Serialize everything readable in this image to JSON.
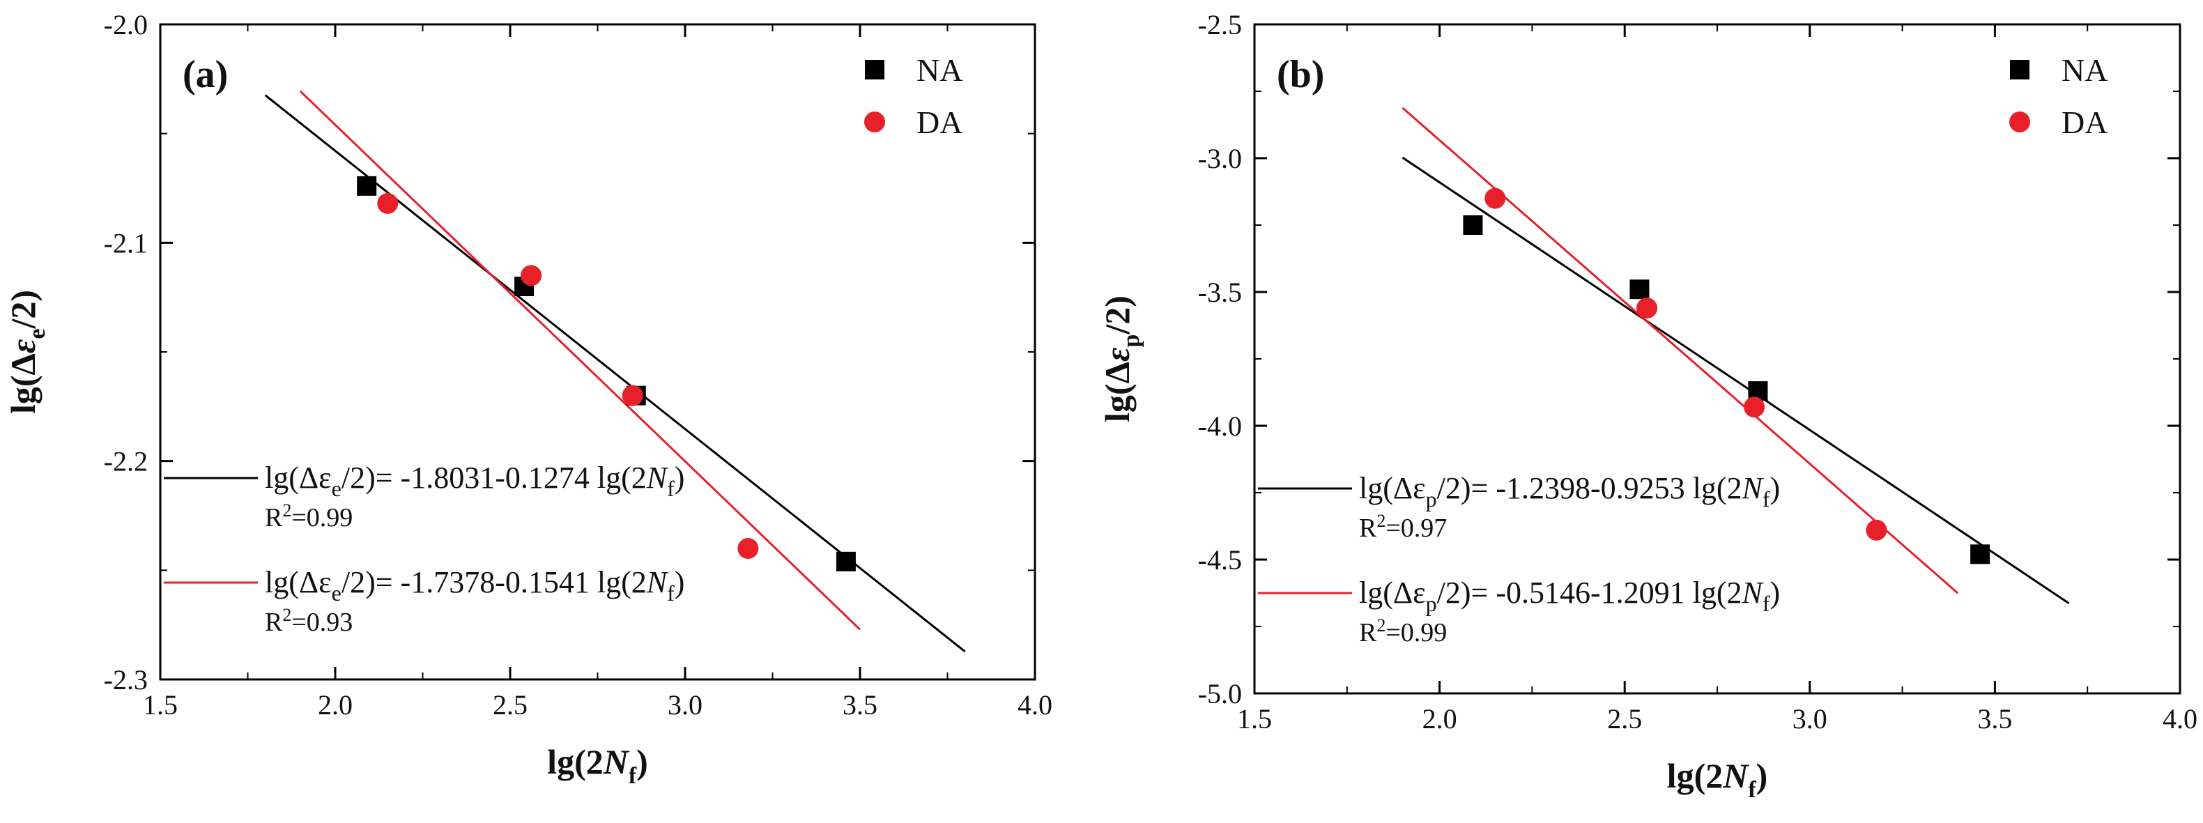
{
  "chart_data": [
    {
      "type": "scatter",
      "panel": "(a)",
      "xlabel": "lg(2Nf)",
      "ylabel": "lg(Δεe/2)",
      "xlim": [
        1.5,
        4.0
      ],
      "ylim": [
        -2.3,
        -2.0
      ],
      "xticks": [
        "1.5",
        "2.0",
        "2.5",
        "3.0",
        "3.5",
        "4.0"
      ],
      "yticks": [
        "-2.0",
        "-2.1",
        "-2.2",
        "-2.3"
      ],
      "series": [
        {
          "name": "NA",
          "marker": "square",
          "color": "#000000",
          "points": [
            [
              2.09,
              -2.074
            ],
            [
              2.54,
              -2.12
            ],
            [
              2.86,
              -2.17
            ],
            [
              3.46,
              -2.246
            ]
          ]
        },
        {
          "name": "DA",
          "marker": "circle",
          "color": "#e8202a",
          "points": [
            [
              2.15,
              -2.082
            ],
            [
              2.56,
              -2.115
            ],
            [
              2.85,
              -2.17
            ],
            [
              3.18,
              -2.24
            ]
          ]
        }
      ],
      "fits": [
        {
          "series": "NA",
          "color": "#000000",
          "x_range": [
            1.8,
            3.8
          ],
          "intercept": -1.8031,
          "slope": -0.1274,
          "eq_prefix": "lg(Δε",
          "eq_sub": "e",
          "eq_mid": "/2)= -1.8031-0.1274 lg(2",
          "eq_var": "N",
          "eq_sub2": "f",
          "eq_end": ")",
          "r2_label": "R",
          "r2_exp": "2",
          "r2_value": "=0.99"
        },
        {
          "series": "DA",
          "color": "#e8202a",
          "x_range": [
            1.9,
            3.5
          ],
          "intercept": -1.7378,
          "slope": -0.1541,
          "eq_prefix": "lg(Δε",
          "eq_sub": "e",
          "eq_mid": "/2)= -1.7378-0.1541 lg(2",
          "eq_var": "N",
          "eq_sub2": "f",
          "eq_end": ")",
          "r2_label": "R",
          "r2_exp": "2",
          "r2_value": "=0.93"
        }
      ],
      "legend_position": "top-right"
    },
    {
      "type": "scatter",
      "panel": "(b)",
      "xlabel": "lg(2Nf)",
      "ylabel": "lg(Δεp/2)",
      "xlim": [
        1.5,
        4.0
      ],
      "ylim": [
        -5.0,
        -2.5
      ],
      "xticks": [
        "1.5",
        "2.0",
        "2.5",
        "3.0",
        "3.5",
        "4.0"
      ],
      "yticks": [
        "-2.5",
        "-3.0",
        "-3.5",
        "-4.0",
        "-4.5",
        "-5.0"
      ],
      "series": [
        {
          "name": "NA",
          "marker": "square",
          "color": "#000000",
          "points": [
            [
              2.09,
              -3.25
            ],
            [
              2.54,
              -3.49
            ],
            [
              2.86,
              -3.87
            ],
            [
              3.46,
              -4.48
            ]
          ]
        },
        {
          "name": "DA",
          "marker": "circle",
          "color": "#e8202a",
          "points": [
            [
              2.15,
              -3.15
            ],
            [
              2.56,
              -3.56
            ],
            [
              2.85,
              -3.93
            ],
            [
              3.18,
              -4.39
            ]
          ]
        }
      ],
      "fits": [
        {
          "series": "NA",
          "color": "#000000",
          "x_range": [
            1.9,
            3.7
          ],
          "intercept": -1.2398,
          "slope": -0.9253,
          "eq_prefix": "lg(Δε",
          "eq_sub": "p",
          "eq_mid": "/2)= -1.2398-0.9253 lg(2",
          "eq_var": "N",
          "eq_sub2": "f",
          "eq_end": ")",
          "r2_label": "R",
          "r2_exp": "2",
          "r2_value": "=0.97"
        },
        {
          "series": "DA",
          "color": "#e8202a",
          "x_range": [
            1.9,
            3.4
          ],
          "intercept": -0.5146,
          "slope": -1.2091,
          "eq_prefix": "lg(Δε",
          "eq_sub": "p",
          "eq_mid": "/2)= -0.5146-1.2091 lg(2",
          "eq_var": "N",
          "eq_sub2": "f",
          "eq_end": ")",
          "r2_label": "R",
          "r2_exp": "2",
          "r2_value": "=0.99"
        }
      ],
      "legend_position": "top-right"
    }
  ]
}
